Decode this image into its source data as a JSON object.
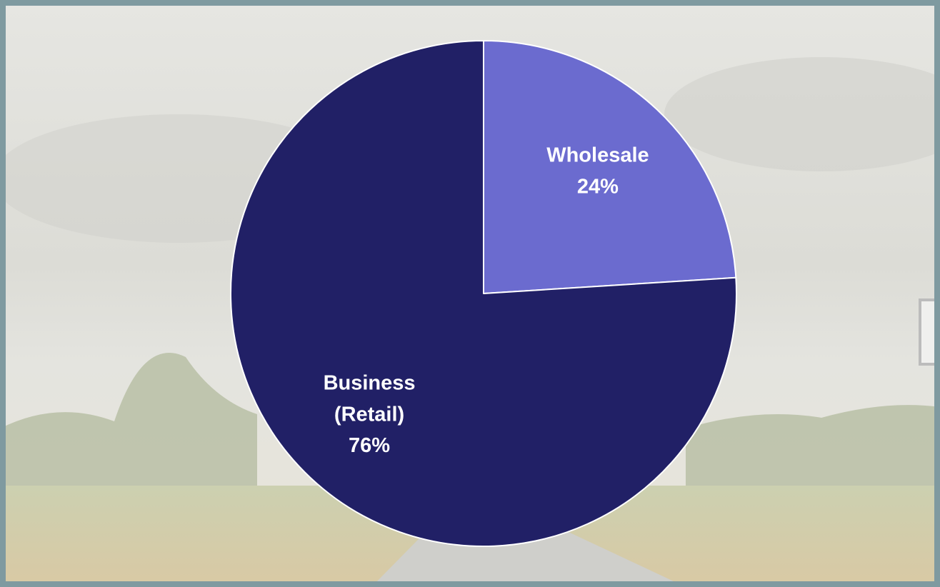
{
  "chart_data": {
    "type": "pie",
    "categories": [
      "Wholesale",
      "Business (Retail)"
    ],
    "values": [
      24,
      76
    ],
    "value_labels": [
      "24%",
      "76%"
    ],
    "colors": [
      "#6b6bcf",
      "#212066"
    ]
  }
}
